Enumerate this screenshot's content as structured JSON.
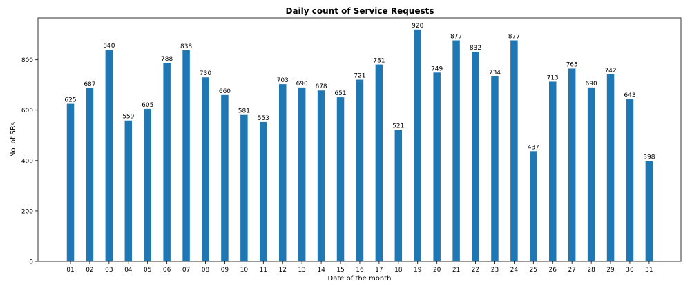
{
  "chart_data": {
    "type": "bar",
    "title": "Daily count of Service Requests",
    "xlabel": "Date of the month",
    "ylabel": "No. of SRs",
    "ylim": [
      0,
      966
    ],
    "yticks": [
      0,
      200,
      400,
      600,
      800
    ],
    "grid": false,
    "categories": [
      "01",
      "02",
      "03",
      "04",
      "05",
      "06",
      "07",
      "08",
      "09",
      "10",
      "11",
      "12",
      "13",
      "14",
      "15",
      "16",
      "17",
      "18",
      "19",
      "20",
      "21",
      "22",
      "23",
      "24",
      "25",
      "26",
      "27",
      "28",
      "29",
      "30",
      "31"
    ],
    "values": [
      625,
      687,
      840,
      559,
      605,
      788,
      838,
      730,
      660,
      581,
      553,
      703,
      690,
      678,
      651,
      721,
      781,
      521,
      920,
      749,
      877,
      832,
      734,
      877,
      437,
      713,
      765,
      690,
      742,
      643,
      398
    ],
    "colors": {
      "bar": "#1f77b4"
    }
  }
}
